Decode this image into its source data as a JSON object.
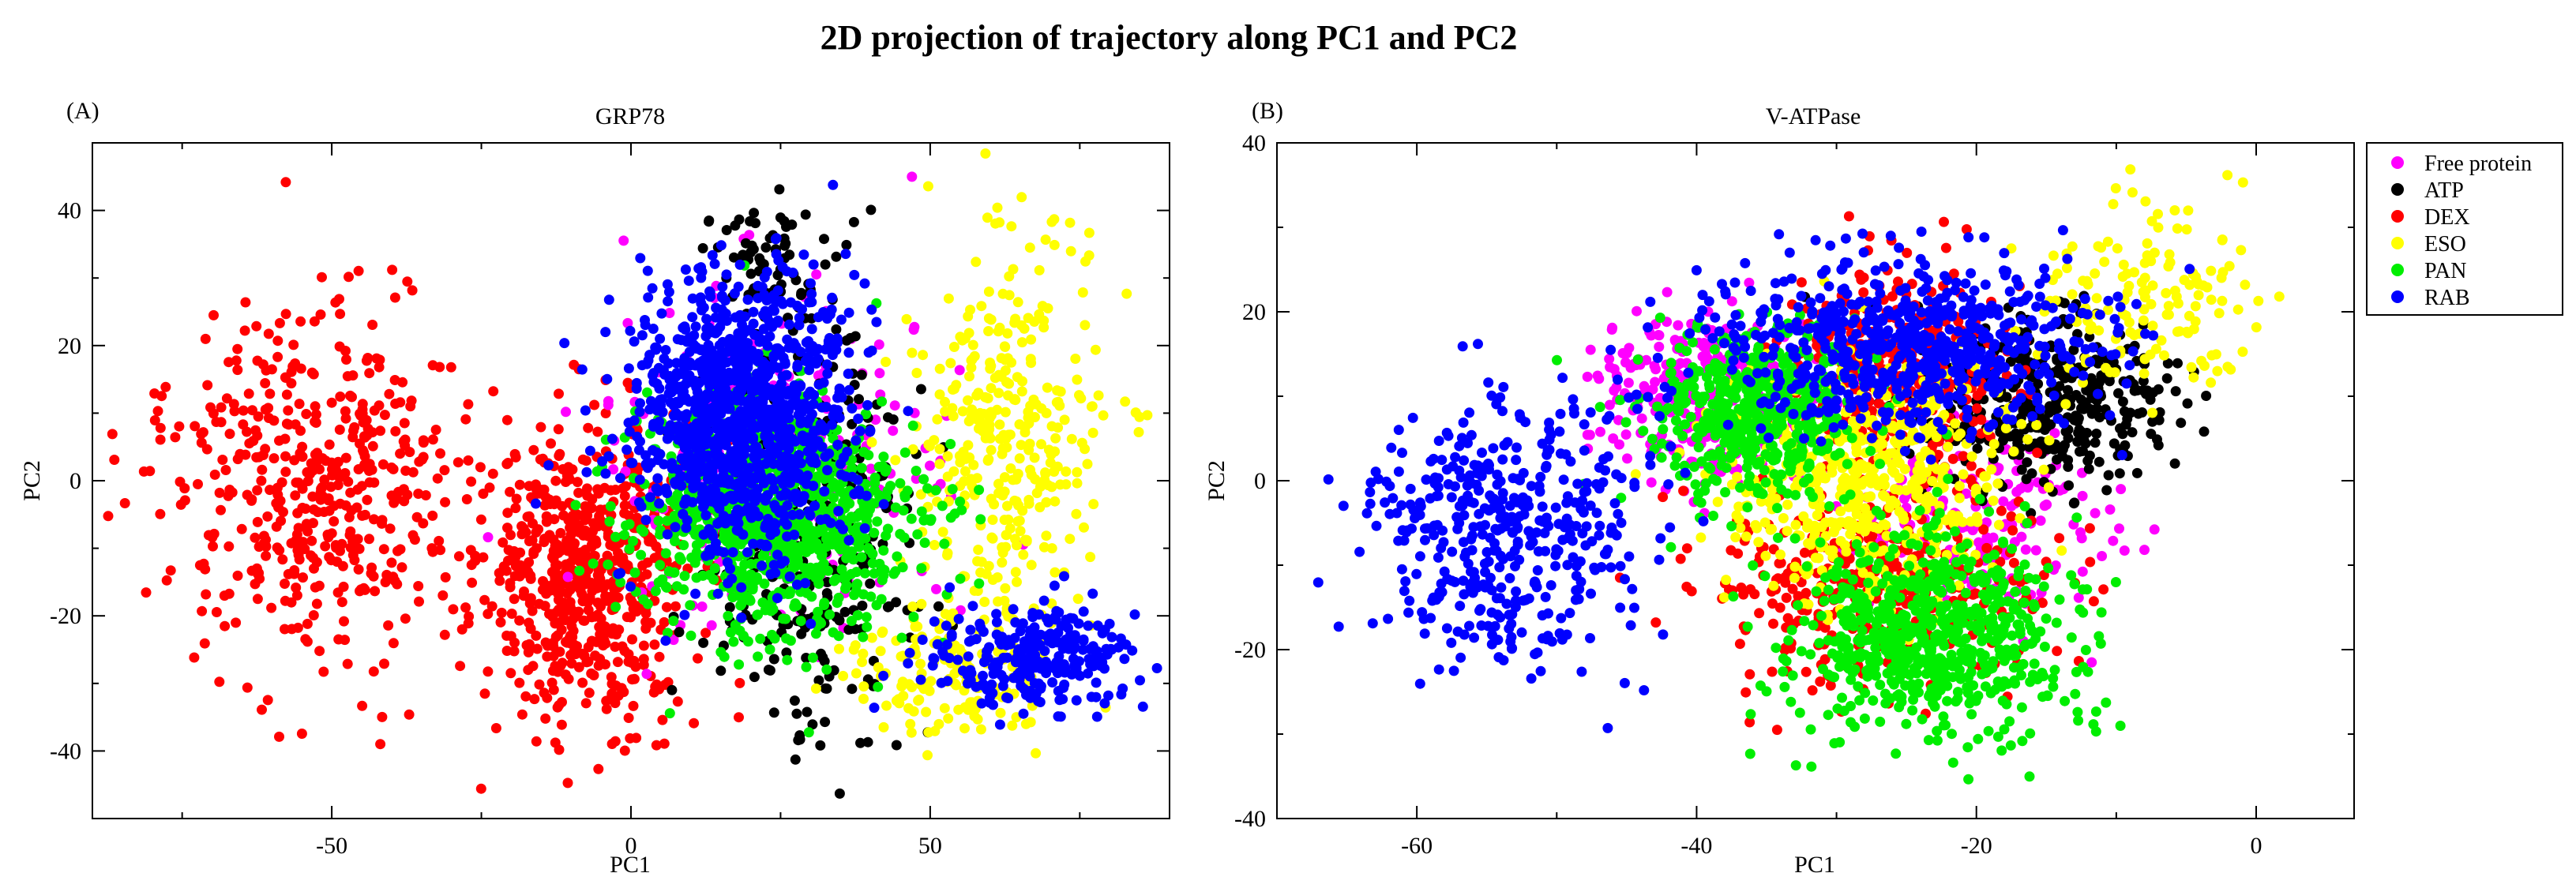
{
  "figure": {
    "title": "2D projection of trajectory along PC1 and PC2"
  },
  "legend": {
    "placement": "right of panel B, top",
    "entries": [
      {
        "name": "Free protein",
        "color": "#ff00ff"
      },
      {
        "name": "ATP",
        "color": "#000000"
      },
      {
        "name": "DEX",
        "color": "#ff0000"
      },
      {
        "name": "ESO",
        "color": "#ffff00"
      },
      {
        "name": "PAN",
        "color": "#00ee00"
      },
      {
        "name": "RAB",
        "color": "#0000ff"
      }
    ]
  },
  "chart_data": [
    {
      "type": "scatter",
      "panel_label": "(A)",
      "title": "GRP78",
      "xlabel": "PC1",
      "ylabel": "PC2",
      "xlim": [
        -90,
        90
      ],
      "ylim": [
        -50,
        50
      ],
      "xticks": [
        -50,
        0,
        50
      ],
      "yticks": [
        -40,
        -20,
        0,
        20,
        40
      ],
      "xminor": 25,
      "yminor": 10,
      "grid": false,
      "series": [
        {
          "name": "DEX",
          "color": "#ff0000",
          "n": 1100,
          "clusters": [
            {
              "cx": -52,
              "cy": 0,
              "sx": 14,
              "sy": 13,
              "w": 0.42
            },
            {
              "cx": -8,
              "cy": -14,
              "sx": 9,
              "sy": 11,
              "w": 0.58
            }
          ]
        },
        {
          "name": "Free protein",
          "color": "#ff00ff",
          "n": 220,
          "clusters": [
            {
              "cx": 25,
              "cy": 0,
              "sx": 14,
              "sy": 13,
              "w": 1
            }
          ]
        },
        {
          "name": "ATP",
          "color": "#000000",
          "n": 380,
          "clusters": [
            {
              "cx": 30,
              "cy": -8,
              "sx": 9,
              "sy": 15,
              "w": 0.8
            },
            {
              "cx": 24,
              "cy": 32,
              "sx": 5,
              "sy": 5,
              "w": 0.2
            }
          ]
        },
        {
          "name": "ESO",
          "color": "#ffff00",
          "n": 500,
          "clusters": [
            {
              "cx": 63,
              "cy": 5,
              "sx": 8,
              "sy": 14,
              "w": 0.65
            },
            {
              "cx": 53,
              "cy": -28,
              "sx": 9,
              "sy": 5,
              "w": 0.35
            }
          ]
        },
        {
          "name": "PAN",
          "color": "#00ee00",
          "n": 1000,
          "clusters": [
            {
              "cx": 24,
              "cy": -5,
              "sx": 11,
              "sy": 9,
              "w": 1
            }
          ]
        },
        {
          "name": "RAB",
          "color": "#0000ff",
          "n": 1400,
          "clusters": [
            {
              "cx": 18,
              "cy": 10,
              "sx": 9,
              "sy": 10,
              "w": 0.82
            },
            {
              "cx": 68,
              "cy": -26,
              "sx": 9,
              "sy": 4,
              "w": 0.18
            }
          ]
        }
      ]
    },
    {
      "type": "scatter",
      "panel_label": "(B)",
      "title": "V-ATPase",
      "xlabel": "PC1",
      "ylabel": "PC2",
      "xlim": [
        -70,
        7
      ],
      "ylim": [
        -40,
        40
      ],
      "xticks": [
        -60,
        -40,
        -20,
        0
      ],
      "yticks": [
        -40,
        -20,
        0,
        20,
        40
      ],
      "xminor": 10,
      "yminor": 10,
      "grid": false,
      "series": [
        {
          "name": "Free protein",
          "color": "#ff00ff",
          "n": 450,
          "clusters": [
            {
              "cx": -40,
              "cy": 10,
              "sx": 4,
              "sy": 5,
              "w": 0.55
            },
            {
              "cx": -20,
              "cy": -5,
              "sx": 5,
              "sy": 5,
              "w": 0.45
            }
          ]
        },
        {
          "name": "ATP",
          "color": "#000000",
          "n": 400,
          "clusters": [
            {
              "cx": -15,
              "cy": 10,
              "sx": 5,
              "sy": 5,
              "w": 1
            }
          ]
        },
        {
          "name": "DEX",
          "color": "#ff0000",
          "n": 750,
          "clusters": [
            {
              "cx": -26,
              "cy": 14,
              "sx": 4,
              "sy": 6,
              "w": 0.45
            },
            {
              "cx": -27,
              "cy": -12,
              "sx": 6,
              "sy": 6,
              "w": 0.55
            }
          ]
        },
        {
          "name": "ESO",
          "color": "#ffff00",
          "n": 700,
          "clusters": [
            {
              "cx": -28,
              "cy": 0,
              "sx": 5,
              "sy": 7,
              "w": 0.8
            },
            {
              "cx": -7,
              "cy": 22,
              "sx": 4,
              "sy": 6,
              "w": 0.2
            }
          ]
        },
        {
          "name": "PAN",
          "color": "#00ee00",
          "n": 1200,
          "clusters": [
            {
              "cx": -36,
              "cy": 8,
              "sx": 4,
              "sy": 5,
              "w": 0.45
            },
            {
              "cx": -23,
              "cy": -18,
              "sx": 5,
              "sy": 6,
              "w": 0.55
            }
          ]
        },
        {
          "name": "RAB",
          "color": "#0000ff",
          "n": 1100,
          "clusters": [
            {
              "cx": -53,
              "cy": -6,
              "sx": 5,
              "sy": 8,
              "w": 0.4
            },
            {
              "cx": -25,
              "cy": 16,
              "sx": 7,
              "sy": 5,
              "w": 0.6
            }
          ]
        }
      ]
    }
  ]
}
